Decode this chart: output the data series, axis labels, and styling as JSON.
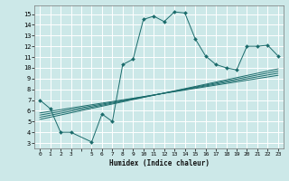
{
  "xlabel": "Humidex (Indice chaleur)",
  "bg_color": "#cce8e8",
  "grid_color": "#ffffff",
  "line_color": "#1a6b6b",
  "xlim": [
    -0.5,
    23.5
  ],
  "ylim": [
    2.5,
    15.8
  ],
  "yticks": [
    3,
    4,
    5,
    6,
    7,
    8,
    9,
    10,
    11,
    12,
    13,
    14,
    15
  ],
  "main_curve": {
    "x": [
      0,
      1,
      2,
      3,
      5,
      6,
      7,
      8,
      9,
      10,
      11,
      12,
      13,
      14,
      15,
      16,
      17,
      18,
      19,
      20,
      21,
      22,
      23
    ],
    "y": [
      7.0,
      6.2,
      4.0,
      4.0,
      3.1,
      5.7,
      5.0,
      10.3,
      10.8,
      14.5,
      14.8,
      14.3,
      15.2,
      15.1,
      12.7,
      11.1,
      10.3,
      10.0,
      9.8,
      12.0,
      12.0,
      12.1,
      11.1
    ]
  },
  "trend_lines": [
    {
      "x": [
        0,
        23
      ],
      "y": [
        5.8,
        9.3
      ]
    },
    {
      "x": [
        0,
        23
      ],
      "y": [
        5.6,
        9.5
      ]
    },
    {
      "x": [
        0,
        23
      ],
      "y": [
        5.4,
        9.7
      ]
    },
    {
      "x": [
        0,
        23
      ],
      "y": [
        5.2,
        9.9
      ]
    }
  ]
}
